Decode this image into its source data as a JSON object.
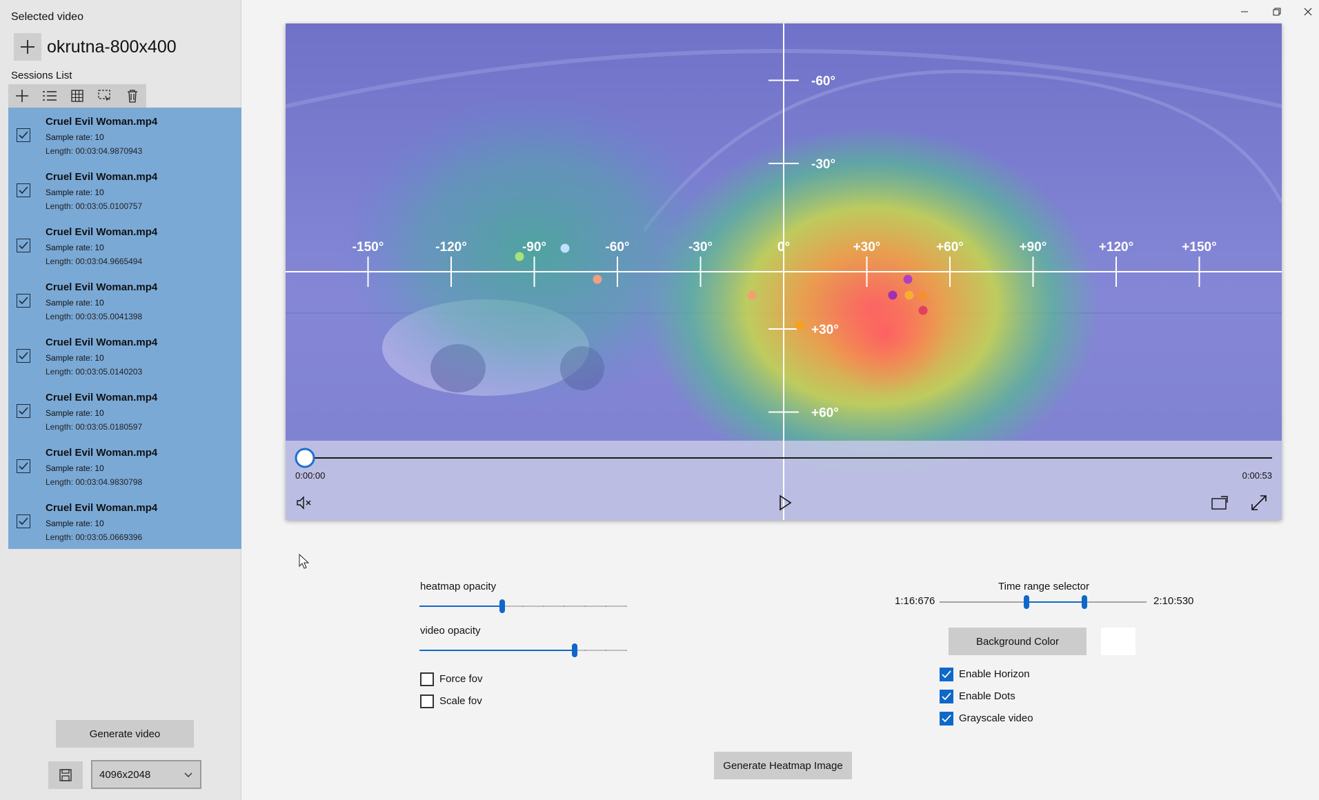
{
  "sidebar": {
    "selected_video_label": "Selected video",
    "video_name": "okrutna-800x400",
    "sessions_label": "Sessions List",
    "sessions": [
      {
        "title": "Cruel Evil Woman.mp4",
        "rate": "Sample rate: 10",
        "length": "Length: 00:03:04.9870943",
        "checked": true
      },
      {
        "title": "Cruel Evil Woman.mp4",
        "rate": "Sample rate: 10",
        "length": "Length: 00:03:05.0100757",
        "checked": true
      },
      {
        "title": "Cruel Evil Woman.mp4",
        "rate": "Sample rate: 10",
        "length": "Length: 00:03:04.9665494",
        "checked": true
      },
      {
        "title": "Cruel Evil Woman.mp4",
        "rate": "Sample rate: 10",
        "length": "Length: 00:03:05.0041398",
        "checked": true
      },
      {
        "title": "Cruel Evil Woman.mp4",
        "rate": "Sample rate: 10",
        "length": "Length: 00:03:05.0140203",
        "checked": true
      },
      {
        "title": "Cruel Evil Woman.mp4",
        "rate": "Sample rate: 10",
        "length": "Length: 00:03:05.0180597",
        "checked": true
      },
      {
        "title": "Cruel Evil Woman.mp4",
        "rate": "Sample rate: 10",
        "length": "Length: 00:03:04.9830798",
        "checked": true
      },
      {
        "title": "Cruel Evil Woman.mp4",
        "rate": "Sample rate: 10",
        "length": "Length: 00:03:05.0669396",
        "checked": true
      }
    ],
    "generate_video_label": "Generate video",
    "resolution": "4096x2048"
  },
  "video": {
    "h_ticks": [
      "-150°",
      "-120°",
      "-90°",
      "-60°",
      "-30°",
      "0°",
      "+30°",
      "+60°",
      "+90°",
      "+120°",
      "+150°"
    ],
    "v_ticks": [
      "-60°",
      "-30°",
      "+30°",
      "+60°"
    ],
    "current_time": "0:00:00",
    "total_time": "0:00:53",
    "progress": 0.0
  },
  "controls": {
    "heatmap_opacity_label": "heatmap opacity",
    "heatmap_opacity": 0.4,
    "video_opacity_label": "video opacity",
    "video_opacity": 0.75,
    "force_fov_label": "Force fov",
    "force_fov": false,
    "scale_fov_label": "Scale fov",
    "scale_fov": false,
    "time_range_label": "Time range selector",
    "time_range_start": "1:16:676",
    "time_range_end": "2:10:530",
    "time_range": [
      0.42,
      0.7
    ],
    "background_color_label": "Background Color",
    "background_color": "#ffffff",
    "enable_horizon_label": "Enable Horizon",
    "enable_horizon": true,
    "enable_dots_label": "Enable Dots",
    "enable_dots": true,
    "grayscale_label": "Grayscale video",
    "grayscale": true,
    "generate_heatmap_label": "Generate Heatmap Image"
  },
  "colors": {
    "accent": "#0f68c9",
    "session_bg": "#7aa9d6",
    "video_tint": "#7b7dd4"
  }
}
